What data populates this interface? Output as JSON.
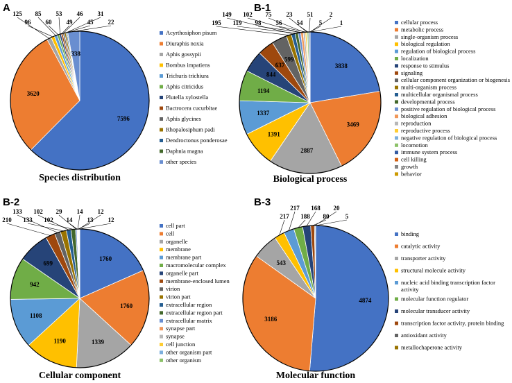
{
  "colors": [
    "#4472C4",
    "#ED7D31",
    "#A5A5A5",
    "#FFC000",
    "#5B9BD5",
    "#70AD47",
    "#264478",
    "#9E480E",
    "#636363",
    "#997300",
    "#255E91",
    "#43682B",
    "#698ED0",
    "#F1975A",
    "#B7B7B7",
    "#FFCD33",
    "#7CAFDD",
    "#8CC168",
    "#335AA1",
    "#D26012",
    "#848484",
    "#CC9A00"
  ],
  "chart_data": [
    {
      "type": "pie",
      "panel": "A",
      "title": "Species distribution",
      "categories": [
        "Acyrthosiphon pisum",
        "Diuraphis noxia",
        "Aphis gossypii",
        "Bombus impatiens",
        "Trichuris trichiura",
        "Aphis citricidus",
        "Plutella xylostella",
        "Bactrocera cucurbitae",
        "Aphis glycines",
        "Rhopalosiphum padi",
        "Dendroctonus ponderosae",
        "Daphnia magna",
        "other species"
      ],
      "values": [
        7596,
        3620,
        125,
        96,
        85,
        60,
        53,
        49,
        46,
        45,
        31,
        22,
        338
      ]
    },
    {
      "type": "pie",
      "panel": "B-1",
      "title": "Biological process",
      "categories": [
        "cellular process",
        "metabolic process",
        "single-organism process",
        "biological regulation",
        "regulation of biological process",
        "localization",
        "response to stimulus",
        "signaling",
        "cellular component organization or biogenesis",
        "multi-organism process",
        "multicellular organismal process",
        "developmental process",
        "positive regulation of biological process",
        "biological adhesion",
        "reproduction",
        "reproductive process",
        "negative regulation of biological process",
        "locomotion",
        "immune system process",
        "cell killing",
        "growth",
        "behavior"
      ],
      "values": [
        3838,
        3469,
        2887,
        1391,
        1337,
        1194,
        844,
        637,
        599,
        195,
        149,
        119,
        102,
        98,
        75,
        56,
        23,
        54,
        51,
        5,
        2,
        1
      ]
    },
    {
      "type": "pie",
      "panel": "B-2",
      "title": "Cellular component",
      "categories": [
        "cell part",
        "cell",
        "organelle",
        "membrane",
        "membrane part",
        "macromolecular complex",
        "organelle part",
        "membrane-enclosed lumen",
        "virion",
        "virion part",
        "extracellular region",
        "extracellular region part",
        "extracellular matrix",
        "synapse part",
        "synapse",
        "cell junction",
        "other organism part",
        "other organism"
      ],
      "values": [
        1760,
        1760,
        1339,
        1190,
        1108,
        942,
        699,
        210,
        133,
        133,
        102,
        102,
        29,
        14,
        14,
        13,
        12,
        12
      ]
    },
    {
      "type": "pie",
      "panel": "B-3",
      "title": "Molecular function",
      "categories": [
        "binding",
        "catalytic activity",
        "transporter activity",
        "structural molecule activity",
        "nucleic acid binding transcription factor activity",
        "molecular function regulator",
        "molecular transducer activity",
        "transcription factor activity, protein binding",
        "antioxidant activity",
        "metallochaperone activity"
      ],
      "values": [
        4874,
        3186,
        543,
        217,
        217,
        188,
        168,
        80,
        20,
        5
      ]
    }
  ]
}
